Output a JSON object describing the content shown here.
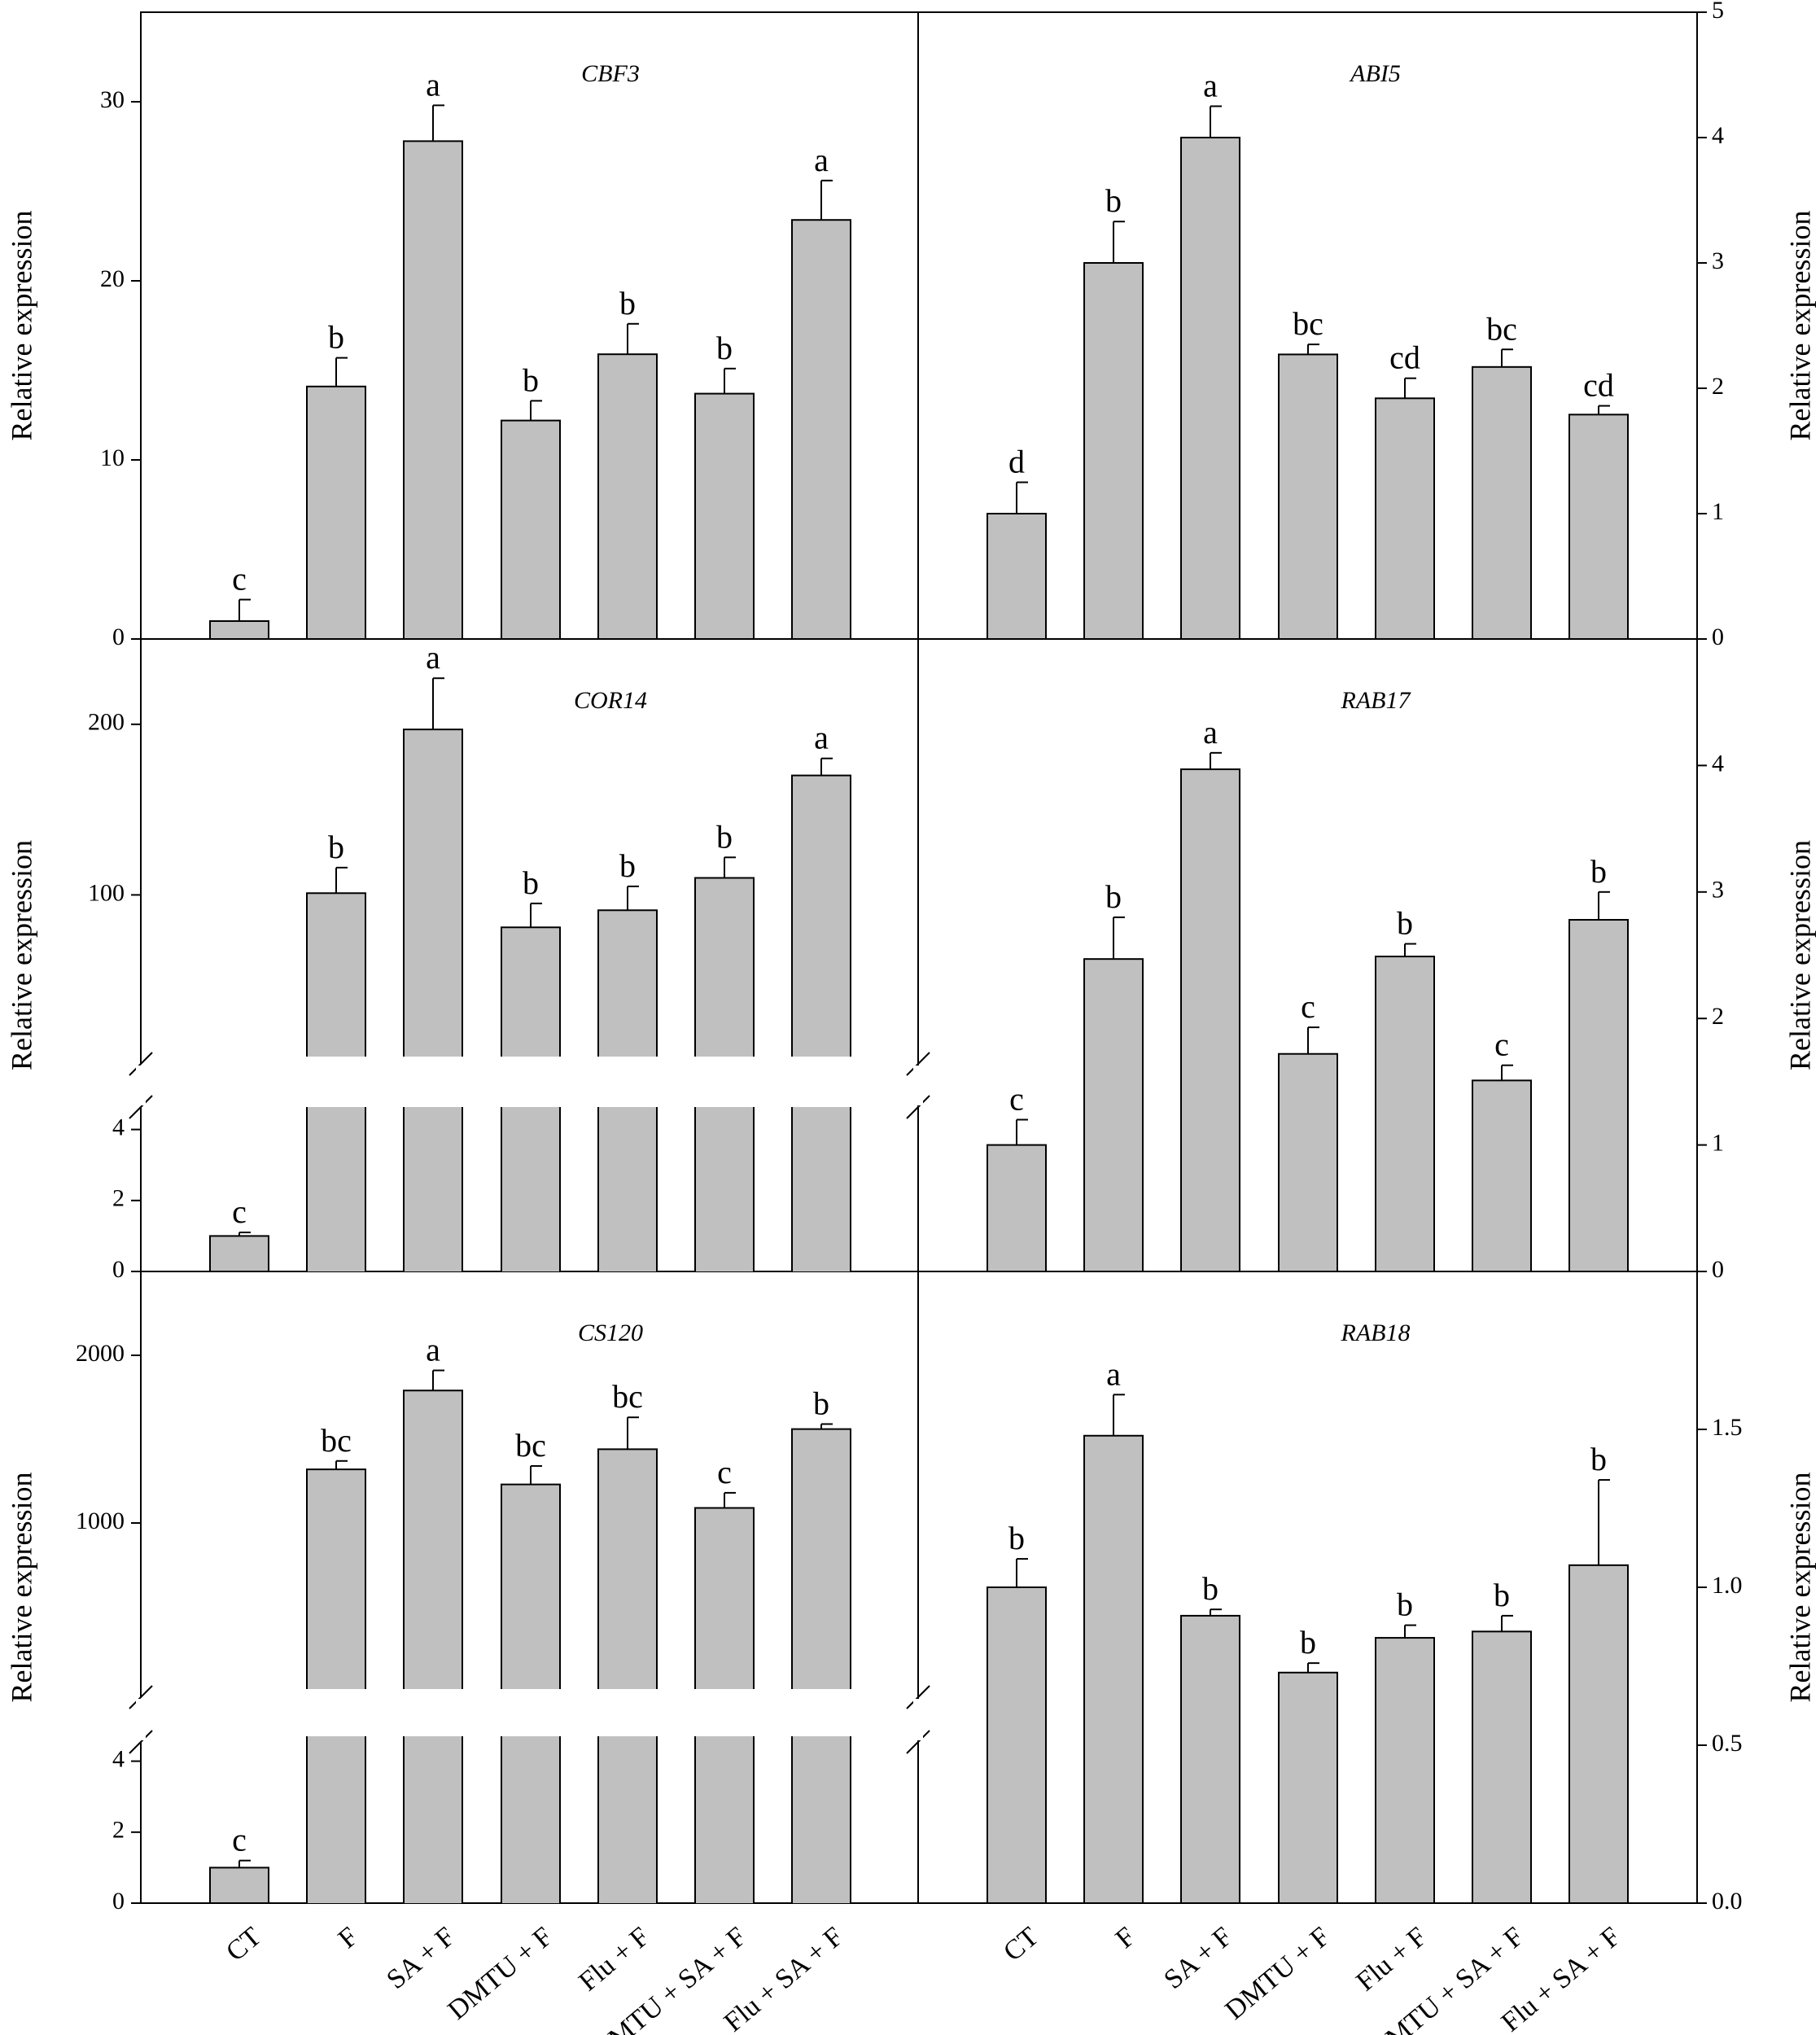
{
  "chart_data": [
    {
      "panel": "top-left",
      "type": "bar",
      "title": "CBF3",
      "ylabel": "Relative expression",
      "ylabel_side": "left",
      "categories": [
        "CT",
        "F",
        "SA + F",
        "DMTU + F",
        "Flu + F",
        "DMTU + SA + F",
        "Flu + SA + F"
      ],
      "values": [
        1.0,
        14.1,
        27.8,
        12.2,
        15.9,
        13.7,
        23.4
      ],
      "errors": [
        1.2,
        1.6,
        2.0,
        1.1,
        1.7,
        1.4,
        2.2
      ],
      "letters": [
        "c",
        "b",
        "a",
        "b",
        "b",
        "b",
        "a"
      ],
      "ylim": [
        0,
        35
      ],
      "yticks": [
        0,
        10,
        20,
        30
      ],
      "ytick_labels": [
        "0",
        "10",
        "20",
        "30"
      ]
    },
    {
      "panel": "top-right",
      "type": "bar",
      "title": "ABI5",
      "ylabel": "Relative expression",
      "ylabel_side": "right",
      "categories": [
        "CT",
        "F",
        "SA + F",
        "DMTU + F",
        "Flu + F",
        "DMTU + SA + F",
        "Flu + SA + F"
      ],
      "values": [
        1.0,
        3.0,
        4.0,
        2.27,
        1.92,
        2.17,
        1.79
      ],
      "errors": [
        0.25,
        0.33,
        0.25,
        0.08,
        0.16,
        0.14,
        0.07
      ],
      "letters": [
        "d",
        "b",
        "a",
        "bc",
        "cd",
        "bc",
        "cd"
      ],
      "ylim": [
        0,
        5
      ],
      "yticks": [
        0,
        1,
        2,
        3,
        4,
        5
      ],
      "ytick_labels": [
        "0",
        "1",
        "2",
        "3",
        "4",
        "5"
      ]
    },
    {
      "panel": "middle-left",
      "type": "bar",
      "title": "COR14",
      "ylabel": "Relative expression",
      "ylabel_side": "left",
      "broken_axis": true,
      "categories": [
        "CT",
        "F",
        "SA + F",
        "DMTU + F",
        "Flu + F",
        "DMTU + SA + F",
        "Flu + SA + F"
      ],
      "values": [
        1.0,
        101,
        197,
        81,
        91,
        110,
        170
      ],
      "errors": [
        0.1,
        15,
        30,
        14,
        14,
        12,
        10
      ],
      "letters": [
        "c",
        "b",
        "a",
        "b",
        "b",
        "b",
        "a"
      ],
      "ylim_lower": [
        0,
        5
      ],
      "ylim_upper": [
        0,
        250
      ],
      "yticks_lower": [
        0,
        2,
        4
      ],
      "ytick_labels_lower": [
        "0",
        "2",
        "4"
      ],
      "yticks_upper": [
        100,
        200
      ],
      "ytick_labels_upper": [
        "100",
        "200"
      ]
    },
    {
      "panel": "middle-right",
      "type": "bar",
      "title": "RAB17",
      "ylabel": "Relative expression",
      "ylabel_side": "right",
      "categories": [
        "CT",
        "F",
        "SA + F",
        "DMTU + F",
        "Flu + F",
        "DMTU + SA + F",
        "Flu + SA + F"
      ],
      "values": [
        1.0,
        2.47,
        3.97,
        1.72,
        2.49,
        1.51,
        2.78
      ],
      "errors": [
        0.2,
        0.33,
        0.13,
        0.21,
        0.1,
        0.12,
        0.22
      ],
      "letters": [
        "c",
        "b",
        "a",
        "c",
        "b",
        "c",
        "b"
      ],
      "ylim": [
        0,
        5
      ],
      "yticks": [
        0,
        1,
        2,
        3,
        4
      ],
      "ytick_labels": [
        "0",
        "1",
        "2",
        "3",
        "4"
      ]
    },
    {
      "panel": "bottom-left",
      "type": "bar",
      "title": "CS120",
      "ylabel": "Relative expression",
      "ylabel_side": "left",
      "broken_axis": true,
      "categories": [
        "CT",
        "F",
        "SA + F",
        "DMTU + F",
        "Flu + F",
        "DMTU + SA + F",
        "Flu + SA + F"
      ],
      "values": [
        1.0,
        1320,
        1790,
        1230,
        1440,
        1090,
        1560
      ],
      "errors": [
        0.2,
        50,
        120,
        110,
        190,
        90,
        30
      ],
      "letters": [
        "c",
        "bc",
        "a",
        "bc",
        "bc",
        "c",
        "b"
      ],
      "ylim_lower": [
        0,
        5
      ],
      "ylim_upper": [
        0,
        2500
      ],
      "yticks_lower": [
        0,
        2,
        4
      ],
      "ytick_labels_lower": [
        "0",
        "2",
        "4"
      ],
      "yticks_upper": [
        1000,
        2000
      ],
      "ytick_labels_upper": [
        "1000",
        "2000"
      ]
    },
    {
      "panel": "bottom-right",
      "type": "bar",
      "title": "RAB18",
      "ylabel": "Relative expression",
      "ylabel_side": "right",
      "categories": [
        "CT",
        "F",
        "SA + F",
        "DMTU + F",
        "Flu + F",
        "DMTU + SA + F",
        "Flu + SA + F"
      ],
      "values": [
        1.0,
        1.48,
        0.91,
        0.73,
        0.84,
        0.86,
        1.07
      ],
      "errors": [
        0.09,
        0.13,
        0.02,
        0.03,
        0.04,
        0.05,
        0.27
      ],
      "letters": [
        "b",
        "a",
        "b",
        "b",
        "b",
        "b",
        "b"
      ],
      "ylim": [
        0,
        2
      ],
      "yticks": [
        0,
        0.5,
        1.0,
        1.5
      ],
      "ytick_labels": [
        "0.0",
        "0.5",
        "1.0",
        "1.5"
      ]
    }
  ],
  "colors": {
    "bar_fill": "#c0c0c0",
    "stroke": "#000000"
  }
}
